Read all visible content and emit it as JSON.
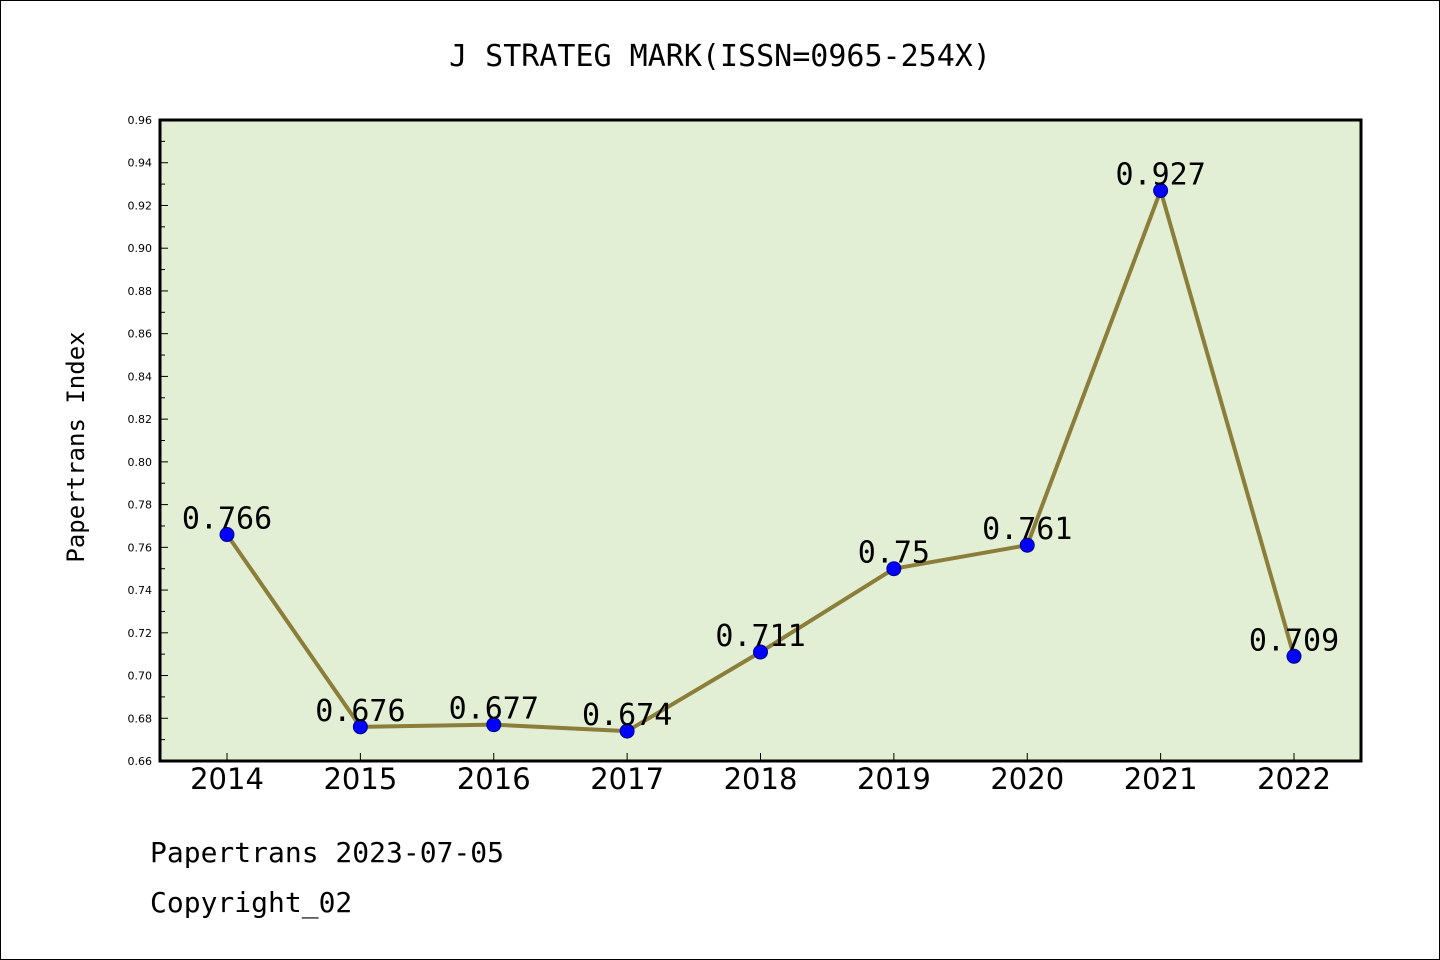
{
  "chart_data": {
    "type": "line",
    "title": "J STRATEG MARK(ISSN=0965-254X)",
    "xlabel": "",
    "ylabel": "Papertrans Index",
    "categories": [
      "2014",
      "2015",
      "2016",
      "2017",
      "2018",
      "2019",
      "2020",
      "2021",
      "2022"
    ],
    "series": [
      {
        "values": [
          0.766,
          0.676,
          0.677,
          0.674,
          0.711,
          0.75,
          0.761,
          0.927,
          0.709
        ],
        "data_labels": [
          "0.766",
          "0.676",
          "0.677",
          "0.674",
          "0.711",
          "0.75",
          "0.761",
          "0.927",
          "0.709"
        ]
      }
    ],
    "ylim": [
      0.66,
      0.96
    ],
    "yticks": [
      "0.66",
      "0.68",
      "0.70",
      "0.72",
      "0.74",
      "0.76",
      "0.78",
      "0.80",
      "0.82",
      "0.84",
      "0.86",
      "0.88",
      "0.90",
      "0.92",
      "0.94",
      "0.96"
    ],
    "grid": false,
    "legend": "none",
    "colors": {
      "plot_background": "#e2efd4",
      "line": "#8b7d3a",
      "marker": "#0000ff",
      "marker_edge": "#00008b",
      "axis": "#000000"
    }
  },
  "footer": {
    "source": "Papertrans 2023-07-05",
    "copyright": "Copyright_02"
  }
}
